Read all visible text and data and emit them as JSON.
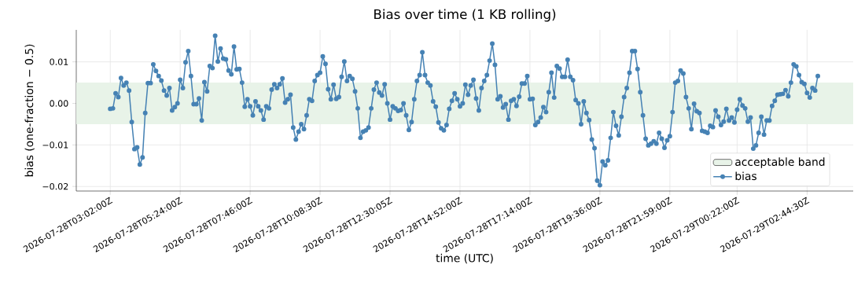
{
  "chart_data": {
    "type": "line",
    "title": "Bias over time (1 KB rolling)",
    "xlabel": "time (UTC)",
    "ylabel": "bias (one-fraction − 0.5)",
    "ylim": [
      -0.0211,
      0.0177
    ],
    "categories": [
      "2026-07-28T03:02:00Z",
      null,
      null,
      null,
      null,
      null,
      null,
      null,
      null,
      null,
      null,
      null,
      null,
      null,
      null,
      null,
      null,
      null,
      null,
      null,
      null,
      null,
      null,
      null,
      null,
      null,
      "2026-07-28T05:24:00Z",
      null,
      null,
      null,
      null,
      null,
      null,
      null,
      null,
      null,
      null,
      null,
      null,
      null,
      null,
      null,
      null,
      null,
      null,
      null,
      null,
      null,
      null,
      null,
      null,
      null,
      "2026-07-28T07:46:00Z",
      null,
      null,
      null,
      null,
      null,
      null,
      null,
      null,
      null,
      null,
      null,
      null,
      null,
      null,
      null,
      null,
      null,
      null,
      null,
      null,
      null,
      null,
      null,
      null,
      null,
      "2026-07-28T10:08:30Z",
      null,
      null,
      null,
      null,
      null,
      null,
      null,
      null,
      null,
      null,
      null,
      null,
      null,
      null,
      null,
      null,
      null,
      null,
      null,
      null,
      null,
      null,
      null,
      null,
      null,
      "2026-07-28T12:30:05Z",
      null,
      null,
      null,
      null,
      null,
      null,
      null,
      null,
      null,
      null,
      null,
      null,
      null,
      null,
      null,
      null,
      null,
      null,
      null,
      null,
      null,
      null,
      null,
      null,
      null,
      "2026-07-28T14:52:00Z",
      null,
      null,
      null,
      null,
      null,
      null,
      null,
      null,
      null,
      null,
      null,
      null,
      null,
      null,
      null,
      null,
      null,
      null,
      null,
      null,
      null,
      null,
      null,
      null,
      null,
      "2026-07-28T17:14:00Z",
      null,
      null,
      null,
      null,
      null,
      null,
      null,
      null,
      null,
      null,
      null,
      null,
      null,
      null,
      null,
      null,
      null,
      null,
      null,
      null,
      null,
      null,
      null,
      null,
      null,
      "2026-07-28T19:36:00Z",
      null,
      null,
      null,
      null,
      null,
      null,
      null,
      null,
      null,
      null,
      null,
      null,
      null,
      null,
      null,
      null,
      null,
      null,
      null,
      null,
      null,
      null,
      null,
      null,
      null,
      "2026-07-28T21:59:00Z",
      null,
      null,
      null,
      null,
      null,
      null,
      null,
      null,
      null,
      null,
      null,
      null,
      null,
      null,
      null,
      null,
      null,
      null,
      null,
      null,
      null,
      null,
      null,
      null,
      "2026-07-29T00:22:00Z",
      null,
      null,
      null,
      null,
      null,
      null,
      null,
      null,
      null,
      null,
      null,
      null,
      null,
      null,
      null,
      null,
      null,
      null,
      null,
      null,
      null,
      null,
      null,
      null,
      null,
      "2026-07-29T02:44:30Z",
      null,
      null,
      null,
      null
    ],
    "yticks": [
      {
        "value": -0.02,
        "label": "−0.02"
      },
      {
        "value": -0.01,
        "label": "−0.01"
      },
      {
        "value": 0,
        "label": "0.00"
      },
      0.01
    ],
    "grid": true,
    "legend": "bottom right",
    "marker": "circle",
    "line_style": "solid",
    "bands": [
      {
        "axis": "y",
        "from": -0.005,
        "to": 0.005,
        "label": "acceptable band",
        "color": "#e8f3e8"
      }
    ],
    "series": [
      {
        "name": "bias",
        "color": "#4682b4",
        "values": [
          -0.0013,
          -0.0012,
          0.0024,
          0.0015,
          0.0061,
          0.0043,
          0.005,
          0.0031,
          -0.0045,
          -0.011,
          -0.0106,
          -0.0147,
          -0.013,
          -0.0023,
          0.0049,
          0.0049,
          0.0094,
          0.0078,
          0.0066,
          0.0055,
          0.0031,
          0.0019,
          0.0037,
          -0.0017,
          -0.0009,
          0.0,
          0.0057,
          0.0037,
          0.0099,
          0.0126,
          0.0066,
          -0.0002,
          -0.0002,
          0.0012,
          -0.0041,
          0.0051,
          0.0029,
          0.009,
          0.0085,
          0.0163,
          0.0101,
          0.0132,
          0.0108,
          0.0106,
          0.0079,
          0.007,
          0.0137,
          0.0082,
          0.0083,
          0.005,
          -0.0008,
          0.001,
          -0.0007,
          -0.0029,
          0.0005,
          -0.0007,
          -0.0017,
          -0.0039,
          -0.0007,
          -0.0012,
          0.0033,
          0.0046,
          0.0037,
          0.0046,
          0.006,
          0.0002,
          0.001,
          0.0021,
          -0.0058,
          -0.0087,
          -0.0068,
          -0.005,
          -0.0062,
          -0.0029,
          0.001,
          0.0006,
          0.0054,
          0.0068,
          0.0074,
          0.0113,
          0.0095,
          0.0034,
          0.001,
          0.0045,
          0.0011,
          0.0015,
          0.0064,
          0.0101,
          0.0054,
          0.0066,
          0.0059,
          0.0029,
          -0.0012,
          -0.0083,
          -0.0068,
          -0.0065,
          -0.0058,
          -0.0012,
          0.0033,
          0.005,
          0.0026,
          0.0019,
          0.0046,
          0.0,
          -0.0039,
          -0.0007,
          -0.0012,
          -0.0018,
          -0.0016,
          0.0,
          -0.0029,
          -0.0064,
          -0.0045,
          0.001,
          0.0054,
          0.0068,
          0.0123,
          0.0068,
          0.005,
          0.0043,
          0.0005,
          -0.0008,
          -0.0046,
          -0.006,
          -0.0065,
          -0.0052,
          -0.0013,
          0.0006,
          0.0024,
          0.001,
          -0.0007,
          0.0,
          0.0045,
          0.0021,
          0.0043,
          0.0057,
          0.0012,
          -0.0017,
          0.0037,
          0.0054,
          0.0068,
          0.0103,
          0.0144,
          0.0093,
          0.001,
          0.0017,
          -0.001,
          -0.0002,
          -0.0039,
          0.0006,
          0.001,
          -0.0006,
          0.0016,
          0.0048,
          0.0048,
          0.0066,
          0.001,
          0.0011,
          -0.0052,
          -0.0045,
          -0.0034,
          -0.0009,
          -0.0021,
          0.0027,
          0.0074,
          0.0014,
          0.009,
          0.0084,
          0.0064,
          0.0064,
          0.0105,
          0.0064,
          0.0056,
          0.0008,
          0.0,
          -0.005,
          0.0005,
          -0.0023,
          -0.004,
          -0.0087,
          -0.0108,
          -0.0186,
          -0.0197,
          -0.014,
          -0.0149,
          -0.0137,
          -0.0083,
          -0.0021,
          -0.0054,
          -0.0077,
          -0.0032,
          0.0015,
          0.0037,
          0.0074,
          0.0126,
          0.0126,
          0.0083,
          0.0027,
          -0.0029,
          -0.0085,
          -0.0101,
          -0.0097,
          -0.0091,
          -0.0097,
          -0.0071,
          -0.0085,
          -0.0107,
          -0.0089,
          -0.0079,
          -0.0021,
          0.005,
          0.0054,
          0.0079,
          0.0072,
          0.0015,
          -0.0012,
          -0.0062,
          -0.0001,
          -0.0019,
          -0.0023,
          -0.0066,
          -0.0068,
          -0.0071,
          -0.0054,
          -0.0057,
          -0.0017,
          -0.0032,
          -0.0052,
          -0.0044,
          -0.0013,
          -0.0041,
          -0.0034,
          -0.0046,
          -0.0015,
          0.001,
          -0.0005,
          -0.0012,
          -0.0044,
          -0.0034,
          -0.0109,
          -0.0101,
          -0.0071,
          -0.0032,
          -0.0075,
          -0.0041,
          -0.0041,
          -0.0006,
          0.0006,
          0.0021,
          0.0022,
          0.0023,
          0.0032,
          0.0017,
          0.005,
          0.0094,
          0.0089,
          0.0068,
          0.0051,
          0.0047,
          0.0025,
          0.0014,
          0.0037,
          0.0031,
          0.0066
        ]
      }
    ]
  }
}
